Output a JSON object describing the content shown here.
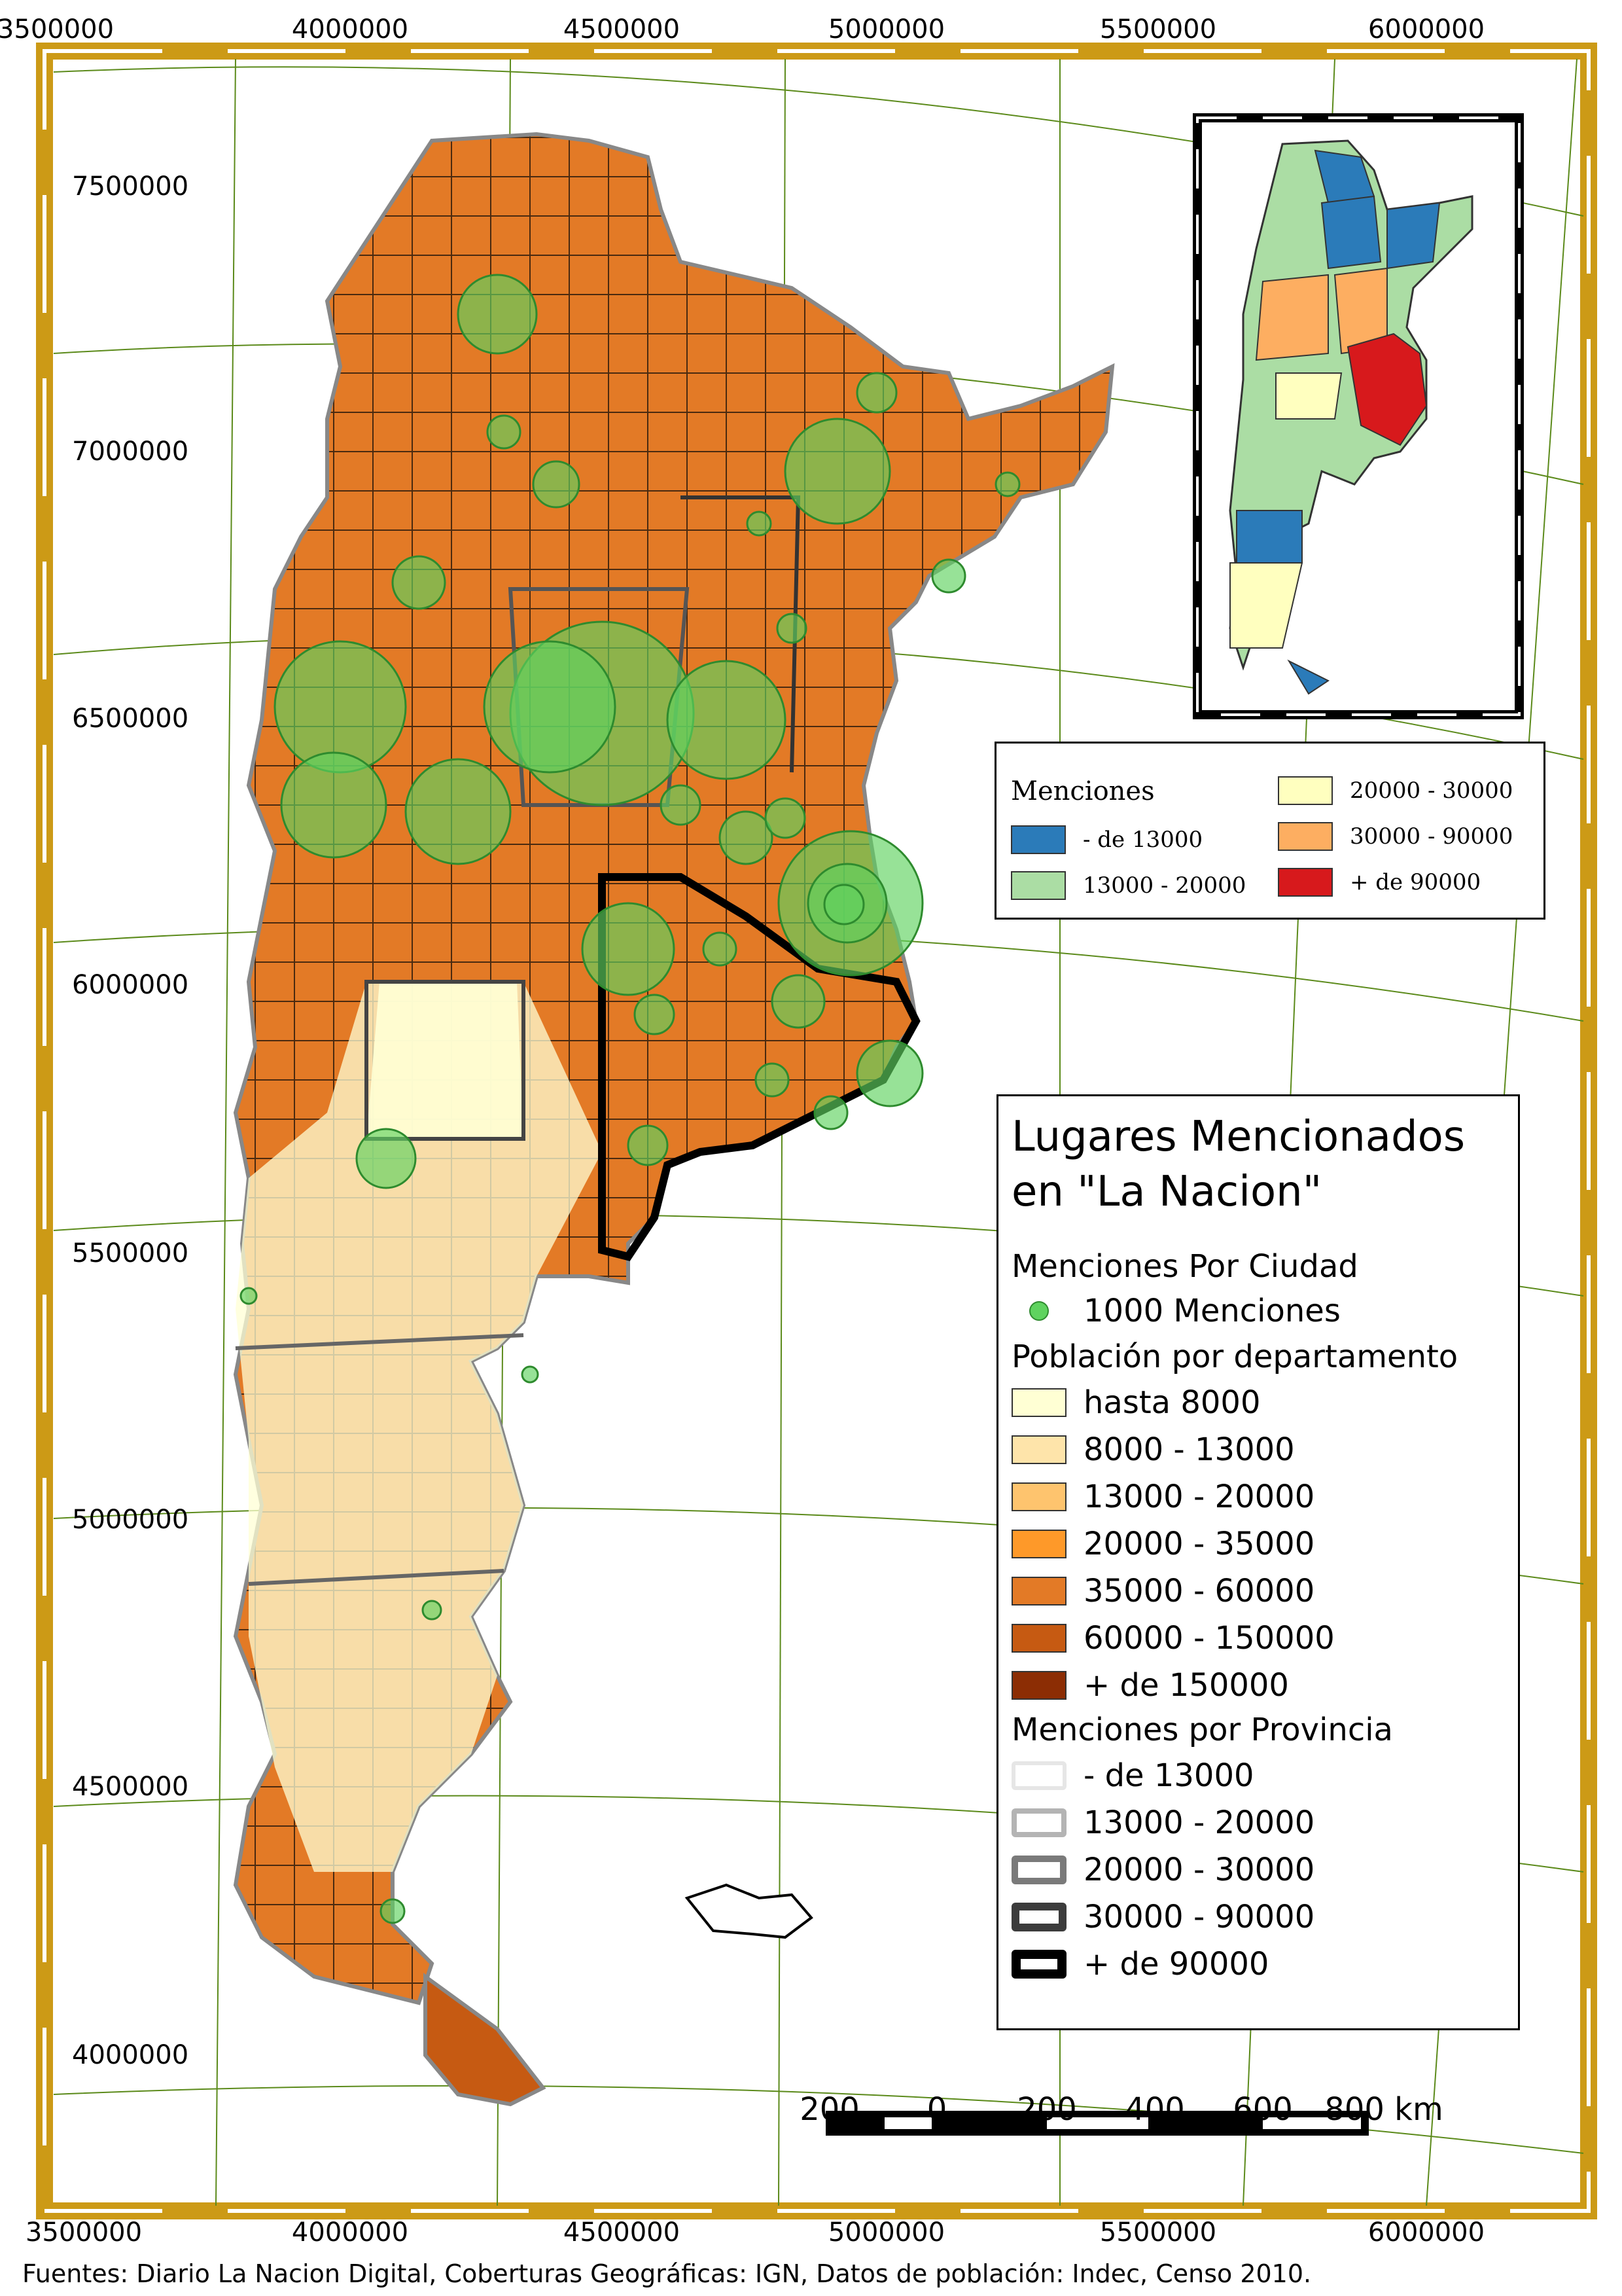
{
  "axes": {
    "x_ticks": [
      "3500000",
      "4000000",
      "4500000",
      "5000000",
      "5500000",
      "6000000"
    ],
    "y_ticks": [
      "7500000",
      "7000000",
      "6500000",
      "6000000",
      "5500000",
      "5000000",
      "4500000",
      "4000000"
    ]
  },
  "legend_inset": {
    "title": "Menciones",
    "items": [
      {
        "label": "- de 13000",
        "color": "#2b7bb9"
      },
      {
        "label": "13000 - 20000",
        "color": "#abdda4"
      },
      {
        "label": "20000 - 30000",
        "color": "#ffffbf"
      },
      {
        "label": "30000 - 90000",
        "color": "#fdae61"
      },
      {
        "label": "+ de 90000",
        "color": "#d7191c"
      }
    ]
  },
  "legend_main": {
    "title_line1": "Lugares Mencionados",
    "title_line2": "en \"La Nacion\"",
    "section_city": "Menciones Por Ciudad",
    "city_item": "1000 Menciones",
    "city_color": "#5fd35f",
    "section_population": "Población por departamento",
    "population_items": [
      {
        "label": "hasta 8000",
        "color": "#ffffd4"
      },
      {
        "label": "8000 - 13000",
        "color": "#fee4aa"
      },
      {
        "label": "13000 - 20000",
        "color": "#fec46e"
      },
      {
        "label": "20000 - 35000",
        "color": "#fe9929"
      },
      {
        "label": "35000 - 60000",
        "color": "#e37a26"
      },
      {
        "label": "60000 - 150000",
        "color": "#c65a12"
      },
      {
        "label": "+ de 150000",
        "color": "#8c2d04"
      }
    ],
    "section_province": "Menciones por Provincia",
    "province_items": [
      {
        "label": "- de 13000",
        "stroke": "#e6e6e6",
        "width": 6
      },
      {
        "label": "13000 - 20000",
        "stroke": "#b4b4b4",
        "width": 8
      },
      {
        "label": "20000 - 30000",
        "stroke": "#7a7a7a",
        "width": 10
      },
      {
        "label": "30000 - 90000",
        "stroke": "#3c3c3c",
        "width": 12
      },
      {
        "label": "+ de 90000",
        "stroke": "#000000",
        "width": 14
      }
    ]
  },
  "scalebar": {
    "labels": [
      "200",
      "0",
      "200",
      "400",
      "600",
      "800 km"
    ]
  },
  "footer": "Fuentes: Diario La Nacion Digital, Coberturas Geográficas: IGN, Datos de población: Indec, Censo 2010.",
  "colors": {
    "frame": "#cc9a16",
    "graticule": "#5b8a1a",
    "mentions_fill": "#5fd35f",
    "mentions_stroke": "#2e8b2e"
  }
}
